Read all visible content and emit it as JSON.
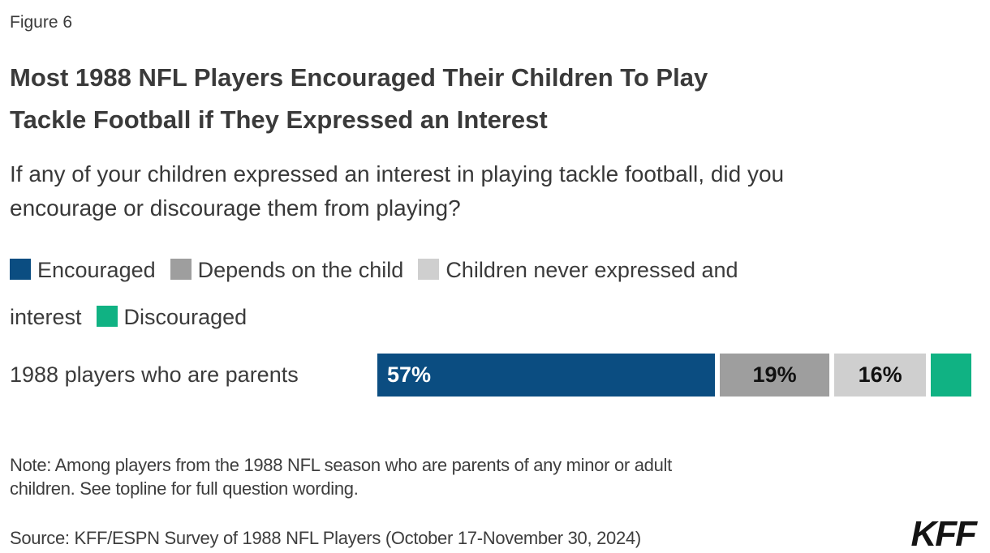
{
  "figure_label": "Figure 6",
  "header": {
    "title": "Most 1988 NFL Players Encouraged Their Children To Play\nTackle Football if They Expressed an Interest",
    "subtitle": "If any of your children expressed an interest in playing tackle football, did you\nencourage or discourage them from playing?"
  },
  "legend": {
    "items": [
      {
        "label": "Encouraged",
        "color": "#0b4d81"
      },
      {
        "label": "Depends on the child",
        "color": "#9e9e9e"
      },
      {
        "label": "Children never expressed and interest",
        "color": "#cfcfcf"
      },
      {
        "label": "Discouraged",
        "color": "#10b283"
      }
    ]
  },
  "chart_data": {
    "type": "bar",
    "orientation": "horizontal",
    "stacked": true,
    "categories": [
      "1988 players who are parents"
    ],
    "series": [
      {
        "name": "Encouraged",
        "values": [
          57
        ],
        "color": "#0b4d81",
        "data_label": "57%"
      },
      {
        "name": "Depends on the child",
        "values": [
          19
        ],
        "color": "#9e9e9e",
        "data_label": "19%"
      },
      {
        "name": "Children never expressed and interest",
        "values": [
          16
        ],
        "color": "#cfcfcf",
        "data_label": "16%"
      },
      {
        "name": "Discouraged",
        "values": [
          7
        ],
        "color": "#10b283",
        "data_label": ""
      }
    ],
    "title": "Most 1988 NFL Players Encouraged Their Children To Play Tackle Football if They Expressed an Interest",
    "xlabel": "",
    "ylabel": "",
    "xlim": [
      0,
      100
    ],
    "grid": false,
    "legend_position": "top"
  },
  "note": "Note: Among players from the 1988 NFL season who are parents of any minor or adult\nchildren. See topline for full question wording.",
  "source": "Source: KFF/ESPN Survey of 1988 NFL Players (October 17-November 30, 2024)",
  "logo_text": "KFF"
}
